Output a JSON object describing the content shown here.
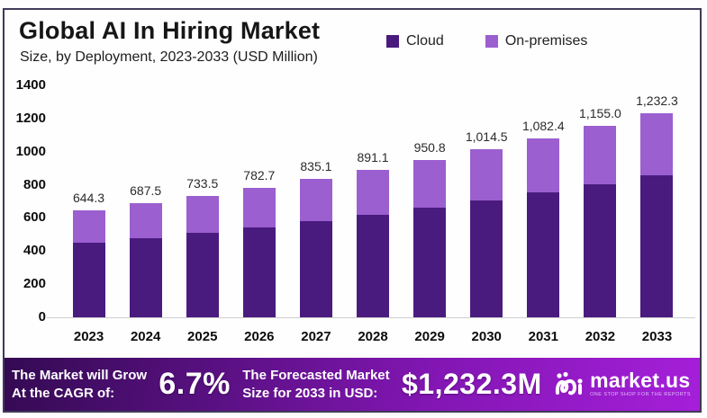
{
  "header": {
    "title": "Global AI In Hiring Market",
    "subtitle": "Size, by Deployment, 2023-2033 (USD Million)"
  },
  "legend": {
    "items": [
      {
        "label": "Cloud",
        "color": "#4a1b7e"
      },
      {
        "label": "On-premises",
        "color": "#9b5fd0"
      }
    ]
  },
  "chart_data": {
    "type": "bar",
    "stacked": true,
    "title": "Global AI In Hiring Market Size, by Deployment, 2023-2033 (USD Million)",
    "categories": [
      "2023",
      "2024",
      "2025",
      "2026",
      "2027",
      "2028",
      "2029",
      "2030",
      "2031",
      "2032",
      "2033"
    ],
    "series": [
      {
        "name": "Cloud",
        "color": "#4a1b7e",
        "values": [
          450,
          478,
          510,
          542,
          581,
          621,
          663,
          705,
          754,
          804,
          857
        ]
      },
      {
        "name": "On-premises",
        "color": "#9b5fd0",
        "values": [
          194.3,
          209.5,
          223.5,
          240.7,
          254.1,
          270.1,
          287.8,
          309.5,
          328.4,
          351.0,
          375.3
        ]
      }
    ],
    "totals": [
      644.3,
      687.5,
      733.5,
      782.7,
      835.1,
      891.1,
      950.8,
      1014.5,
      1082.4,
      1155.0,
      1232.3
    ],
    "total_labels": [
      "644.3",
      "687.5",
      "733.5",
      "782.7",
      "835.1",
      "891.1",
      "950.8",
      "1,014.5",
      "1,082.4",
      "1,155.0",
      "1,232.3"
    ],
    "xlabel": "",
    "ylabel": "",
    "ylim": [
      0,
      1400
    ],
    "yticks": [
      0,
      200,
      400,
      600,
      800,
      1000,
      1200,
      1400
    ],
    "grid": false,
    "legend_position": "top"
  },
  "banner": {
    "left_line1": "The Market will Grow",
    "left_line2": "At the CAGR of:",
    "cagr": "6.7%",
    "right_line1": "The Forecasted Market",
    "right_line2": "Size for 2033 in USD:",
    "forecast_value": "$1,232.3M",
    "brand": {
      "name": "market.us",
      "tagline": "ONE STOP SHOP FOR THE REPORTS",
      "icon": "market-us-logo-icon"
    }
  }
}
